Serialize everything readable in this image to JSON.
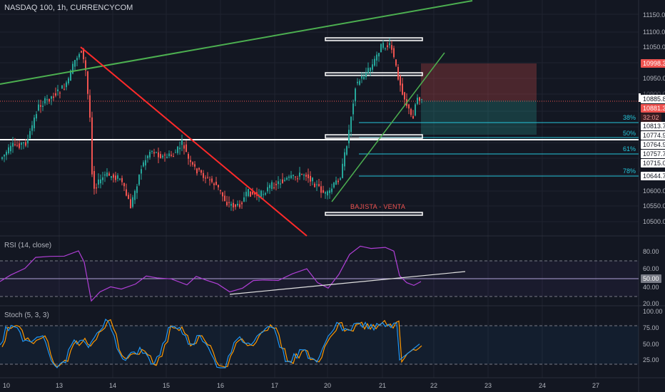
{
  "header": {
    "title": "NASDAQ 100, 1h, CURRENCYCOM"
  },
  "panels": {
    "rsi_label": "RSI (14, close)",
    "stoch_label": "Stoch (5, 3, 3)"
  },
  "annotation": {
    "text": "BAJISTA - VENTA"
  },
  "price_axis": {
    "ticks": [
      "11150.0",
      "11100.0",
      "11050.0",
      "10950.0",
      "10900.0",
      "10600.0",
      "10550.0",
      "10500.0"
    ]
  },
  "price_tags": [
    {
      "text": "10998.3",
      "bg": "#ef5350",
      "fg": "#ffffff"
    },
    {
      "text": "10885.8",
      "bg": "#ffffff",
      "fg": "#131722"
    },
    {
      "text": "10881.3",
      "bg": "#ef5350",
      "fg": "#ffffff"
    },
    {
      "text": "32:02",
      "bg": "#3d1d21",
      "fg": "#ef9a9a"
    },
    {
      "text": "10813.7",
      "bg": "#ffffff",
      "fg": "#131722"
    },
    {
      "text": "10774.9",
      "bg": "#ffffff",
      "fg": "#131722"
    },
    {
      "text": "10764.9",
      "bg": "#ffffff",
      "fg": "#131722"
    },
    {
      "text": "10757.7",
      "bg": "#ffffff",
      "fg": "#131722"
    },
    {
      "text": "10715.0",
      "bg": "#ffffff",
      "fg": "#131722"
    },
    {
      "text": "10644.7",
      "bg": "#ffffff",
      "fg": "#131722"
    }
  ],
  "fib_levels": [
    "38%",
    "50%",
    "61%",
    "78%"
  ],
  "rsi_axis": {
    "ticks": [
      "80.00",
      "60.00",
      "50.00",
      "40.00",
      "20.00"
    ]
  },
  "stoch_axis": {
    "ticks": [
      "100.00",
      "75.00",
      "50.00",
      "25.00"
    ]
  },
  "time_axis": {
    "labels": [
      "10",
      "13",
      "14",
      "15",
      "16",
      "17",
      "20",
      "21",
      "22",
      "23",
      "24",
      "27"
    ]
  },
  "colors": {
    "background": "#131722",
    "up": "#26a69a",
    "down": "#ef5350",
    "trend_down": "#ff2a2a",
    "trend_up": "#4caf50",
    "rsi": "#9c27b0",
    "stoch_k": "#2196f3",
    "stoch_d": "#ff9800",
    "fib": "#26c6da"
  }
}
